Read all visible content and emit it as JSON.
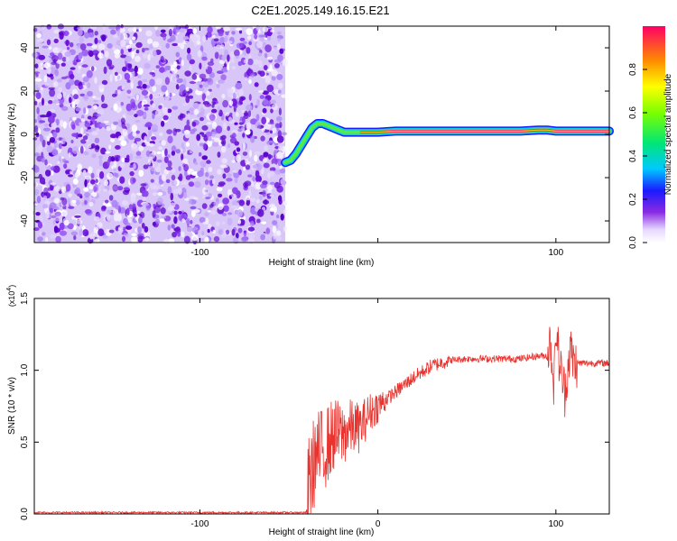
{
  "title": "C2E1.2025.149.16.15.E21",
  "chart_data": [
    {
      "type": "heatmap",
      "xlabel": "Height of straight line (km)",
      "ylabel": "Frequency (Hz)",
      "xlim": [
        -193,
        130
      ],
      "ylim": [
        -50,
        50
      ],
      "x_ticks": [
        -100,
        0,
        100
      ],
      "x_tick_labels": [
        "-100",
        "",
        "100"
      ],
      "y_ticks": [
        -40,
        -20,
        0,
        20,
        40
      ],
      "y_tick_labels": [
        "-40",
        "-20",
        "0",
        "20",
        "40"
      ],
      "noise_region_x": [
        -193,
        -52
      ],
      "ridge": {
        "x": [
          -52,
          -49,
          -46,
          -43,
          -40,
          -37,
          -34,
          -31,
          -28,
          -25,
          -22,
          -19,
          -15,
          -10,
          0,
          10,
          20,
          40,
          60,
          80,
          90,
          95,
          100,
          110,
          120,
          130
        ],
        "y": [
          -13,
          -12,
          -9,
          -5,
          -1,
          3,
          5,
          5,
          4,
          3,
          2,
          1,
          1,
          1,
          1,
          1.5,
          1.5,
          1.5,
          1.5,
          1.5,
          2,
          2,
          1.5,
          1.5,
          1.5,
          1.5
        ]
      },
      "colorbar": {
        "label": "Normalized spectral amplitude",
        "range": [
          0,
          1
        ],
        "ticks": [
          0.0,
          0.2,
          0.4,
          0.6,
          0.8
        ],
        "tick_labels": [
          "0.0",
          "0.2",
          "0.4",
          "0.6",
          "0.8"
        ]
      },
      "grid": false
    },
    {
      "type": "line",
      "xlabel": "Height of straight line (km)",
      "ylabel": "SNR (10 * v/v)",
      "exponent_label": "(x10",
      "exponent_value": "4",
      "xlim": [
        -193,
        130
      ],
      "ylim": [
        0,
        1.5
      ],
      "x_ticks": [
        -100,
        0,
        100
      ],
      "x_tick_labels": [
        "-100",
        "0",
        "100"
      ],
      "y_ticks": [
        0,
        0.5,
        1.0,
        1.5
      ],
      "y_tick_labels": [
        "0.0",
        "0.5",
        "1.0",
        "1.5"
      ],
      "series": [
        {
          "color": "#e8332e",
          "x": [
            -193,
            -150,
            -100,
            -60,
            -40,
            -39,
            -35,
            -30,
            -25,
            -20,
            -15,
            -10,
            -5,
            0,
            10,
            20,
            30,
            40,
            50,
            60,
            70,
            80,
            90,
            95,
            97,
            99,
            100,
            102,
            105,
            108,
            110,
            115,
            120,
            130
          ],
          "y": [
            0.01,
            0.01,
            0.01,
            0.01,
            0.01,
            0.2,
            0.4,
            0.45,
            0.55,
            0.55,
            0.6,
            0.6,
            0.7,
            0.75,
            0.85,
            0.95,
            1.03,
            1.07,
            1.08,
            1.08,
            1.08,
            1.08,
            1.1,
            1.1,
            1.2,
            0.9,
            1.3,
            1.05,
            0.85,
            1.15,
            1.05,
            1.05,
            1.05,
            1.05
          ]
        }
      ],
      "grid": false
    }
  ]
}
